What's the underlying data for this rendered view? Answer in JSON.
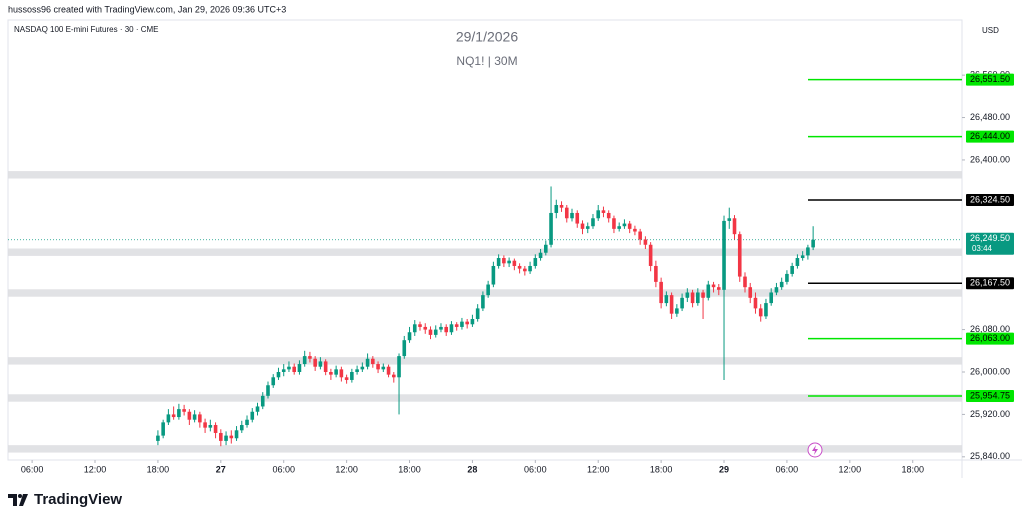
{
  "header": {
    "credit": "hussoss96 created with TradingView.com, Jan 29, 2026 09:36 UTC+3",
    "symbol": "NASDAQ 100 E-mini Futures · 30 · CME",
    "currency": "USD"
  },
  "footer": {
    "logo": "TradingView"
  },
  "chart_data": {
    "type": "candlestick",
    "title": "29/1/2026",
    "subtitle": "NQ1! | 30M",
    "up_color": "#089981",
    "down_color": "#f23645",
    "grid": false,
    "xlim": [
      3.7,
      94.7
    ],
    "ylim": [
      25834,
      26664
    ],
    "xticks": [
      {
        "value": 6,
        "label": "06:00"
      },
      {
        "value": 12,
        "label": "12:00"
      },
      {
        "value": 18,
        "label": "18:00"
      },
      {
        "value": 24,
        "label": "27"
      },
      {
        "value": 30,
        "label": "06:00"
      },
      {
        "value": 36,
        "label": "12:00"
      },
      {
        "value": 42,
        "label": "18:00"
      },
      {
        "value": 48,
        "label": "28"
      },
      {
        "value": 54,
        "label": "06:00"
      },
      {
        "value": 60,
        "label": "12:00"
      },
      {
        "value": 66,
        "label": "18:00"
      },
      {
        "value": 72,
        "label": "29"
      },
      {
        "value": 78,
        "label": "06:00"
      },
      {
        "value": 84,
        "label": "12:00"
      },
      {
        "value": 90,
        "label": "18:00"
      }
    ],
    "yticks": [
      {
        "value": 26560,
        "label": "26,560.00"
      },
      {
        "value": 26480,
        "label": "26,480.00"
      },
      {
        "value": 26400,
        "label": "26,400.00"
      },
      {
        "value": 26080,
        "label": "26,080.00"
      },
      {
        "value": 26000,
        "label": "26,000.00"
      },
      {
        "value": 25920,
        "label": "25,920.00"
      },
      {
        "value": 25840,
        "label": "25,840.00"
      }
    ],
    "zones": [
      [
        26365,
        26379
      ],
      [
        26219,
        26233
      ],
      [
        26142,
        26156
      ],
      [
        26014,
        26028
      ],
      [
        25944,
        25958
      ],
      [
        25848,
        25862
      ]
    ],
    "levels": [
      {
        "value": 26551.5,
        "label": "26,551.50",
        "color": "#00e600"
      },
      {
        "value": 26444,
        "label": "26,444.00",
        "color": "#00e600"
      },
      {
        "value": 26324.5,
        "label": "26,324.50",
        "color": "#000000"
      },
      {
        "value": 26167.5,
        "label": "26,167.50",
        "color": "#000000"
      },
      {
        "value": 26063,
        "label": "26,063.00",
        "color": "#00e600"
      },
      {
        "value": 25954.75,
        "label": "25,954.75",
        "color": "#00e600"
      }
    ],
    "last_price": {
      "value": 26249.5,
      "label": "26,249.50",
      "countdown": "03:44",
      "color": "#089981"
    },
    "candles": [
      [
        18,
        25870,
        25890,
        25862,
        25880
      ],
      [
        18.5,
        25880,
        25910,
        25875,
        25905
      ],
      [
        19,
        25905,
        25930,
        25900,
        25920
      ],
      [
        19.5,
        25920,
        25935,
        25910,
        25915
      ],
      [
        20,
        25915,
        25940,
        25910,
        25930
      ],
      [
        20.5,
        25930,
        25938,
        25918,
        25925
      ],
      [
        21,
        25925,
        25930,
        25900,
        25910
      ],
      [
        21.5,
        25910,
        25928,
        25905,
        25920
      ],
      [
        22,
        25920,
        25925,
        25895,
        25905
      ],
      [
        22.5,
        25905,
        25912,
        25885,
        25895
      ],
      [
        23,
        25895,
        25910,
        25888,
        25900
      ],
      [
        23.5,
        25900,
        25905,
        25875,
        25885
      ],
      [
        24,
        25885,
        25892,
        25860,
        25870
      ],
      [
        24.5,
        25870,
        25888,
        25862,
        25880
      ],
      [
        25,
        25880,
        25890,
        25865,
        25875
      ],
      [
        25.5,
        25875,
        25898,
        25870,
        25890
      ],
      [
        26,
        25890,
        25908,
        25885,
        25900
      ],
      [
        26.5,
        25900,
        25918,
        25895,
        25910
      ],
      [
        27,
        25910,
        25932,
        25905,
        25925
      ],
      [
        27.5,
        25925,
        25942,
        25918,
        25935
      ],
      [
        28,
        25935,
        25962,
        25930,
        25955
      ],
      [
        28.5,
        25955,
        25982,
        25950,
        25975
      ],
      [
        29,
        25975,
        25996,
        25970,
        25990
      ],
      [
        29.5,
        25990,
        26008,
        25985,
        26000
      ],
      [
        30,
        26000,
        26015,
        25992,
        26005
      ],
      [
        30.5,
        26005,
        26020,
        26000,
        26010
      ],
      [
        31,
        26010,
        26016,
        25995,
        26000
      ],
      [
        31.5,
        26000,
        26022,
        25995,
        26015
      ],
      [
        32,
        26015,
        26040,
        26010,
        26030
      ],
      [
        32.5,
        26030,
        26038,
        26018,
        26025
      ],
      [
        33,
        26025,
        26030,
        26002,
        26010
      ],
      [
        33.5,
        26010,
        26028,
        26005,
        26020
      ],
      [
        34,
        26020,
        26024,
        25994,
        26000
      ],
      [
        34.5,
        26000,
        26006,
        25985,
        25995
      ],
      [
        35,
        25995,
        26012,
        25990,
        26005
      ],
      [
        35.5,
        26005,
        26010,
        25982,
        25990
      ],
      [
        36,
        25990,
        25995,
        25978,
        25985
      ],
      [
        36.5,
        25985,
        26006,
        25980,
        26000
      ],
      [
        37,
        26000,
        26012,
        25995,
        26005
      ],
      [
        37.5,
        26005,
        26018,
        26000,
        26010
      ],
      [
        38,
        26010,
        26035,
        26005,
        26025
      ],
      [
        38.5,
        26025,
        26030,
        26008,
        26015
      ],
      [
        39,
        26015,
        26020,
        25998,
        26005
      ],
      [
        39.5,
        26005,
        26016,
        26000,
        26010
      ],
      [
        40,
        26010,
        26014,
        25990,
        25995
      ],
      [
        40.5,
        25995,
        26000,
        25980,
        25990
      ],
      [
        41,
        25990,
        26035,
        25920,
        26030
      ],
      [
        41.5,
        26030,
        26068,
        26025,
        26060
      ],
      [
        42,
        26060,
        26085,
        26055,
        26075
      ],
      [
        42.5,
        26075,
        26098,
        26068,
        26090
      ],
      [
        43,
        26090,
        26095,
        26078,
        26085
      ],
      [
        43.5,
        26085,
        26092,
        26072,
        26080
      ],
      [
        44,
        26080,
        26086,
        26062,
        26070
      ],
      [
        44.5,
        26070,
        26088,
        26065,
        26080
      ],
      [
        45,
        26080,
        26092,
        26075,
        26085
      ],
      [
        45.5,
        26085,
        26090,
        26068,
        26075
      ],
      [
        46,
        26075,
        26096,
        26070,
        26090
      ],
      [
        46.5,
        26090,
        26094,
        26078,
        26085
      ],
      [
        47,
        26085,
        26102,
        26080,
        26095
      ],
      [
        47.5,
        26095,
        26100,
        26082,
        26090
      ],
      [
        48,
        26090,
        26108,
        26085,
        26100
      ],
      [
        48.5,
        26100,
        26128,
        26095,
        26120
      ],
      [
        49,
        26120,
        26152,
        26115,
        26145
      ],
      [
        49.5,
        26145,
        26172,
        26140,
        26165
      ],
      [
        50,
        26165,
        26208,
        26160,
        26200
      ],
      [
        50.5,
        26200,
        26222,
        26195,
        26215
      ],
      [
        51,
        26215,
        26220,
        26198,
        26205
      ],
      [
        51.5,
        26205,
        26216,
        26198,
        26210
      ],
      [
        52,
        26210,
        26214,
        26192,
        26200
      ],
      [
        52.5,
        26200,
        26205,
        26186,
        26195
      ],
      [
        53,
        26195,
        26200,
        26182,
        26190
      ],
      [
        53.5,
        26190,
        26208,
        26185,
        26200
      ],
      [
        54,
        26200,
        26222,
        26195,
        26215
      ],
      [
        54.5,
        26215,
        26232,
        26210,
        26225
      ],
      [
        55,
        26225,
        26248,
        26220,
        26240
      ],
      [
        55.5,
        26240,
        26350,
        26235,
        26300
      ],
      [
        56,
        26300,
        26325,
        26290,
        26315
      ],
      [
        56.5,
        26315,
        26322,
        26302,
        26310
      ],
      [
        57,
        26310,
        26315,
        26282,
        26290
      ],
      [
        57.5,
        26290,
        26308,
        26284,
        26300
      ],
      [
        58,
        26300,
        26305,
        26272,
        26280
      ],
      [
        58.5,
        26280,
        26286,
        26260,
        26270
      ],
      [
        59,
        26270,
        26282,
        26262,
        26275
      ],
      [
        59.5,
        26275,
        26298,
        26270,
        26290
      ],
      [
        60,
        26290,
        26315,
        26285,
        26305
      ],
      [
        60.5,
        26305,
        26312,
        26292,
        26300
      ],
      [
        61,
        26300,
        26305,
        26282,
        26290
      ],
      [
        61.5,
        26290,
        26295,
        26262,
        26270
      ],
      [
        62,
        26270,
        26282,
        26265,
        26275
      ],
      [
        62.5,
        26275,
        26288,
        26270,
        26280
      ],
      [
        63,
        26280,
        26285,
        26262,
        26270
      ],
      [
        63.5,
        26270,
        26276,
        26258,
        26265
      ],
      [
        64,
        26265,
        26270,
        26240,
        26250
      ],
      [
        64.5,
        26250,
        26256,
        26232,
        26240
      ],
      [
        65,
        26240,
        26245,
        26190,
        26200
      ],
      [
        65.5,
        26200,
        26210,
        26160,
        26170
      ],
      [
        66,
        26170,
        26178,
        26120,
        26130
      ],
      [
        66.5,
        26130,
        26152,
        26124,
        26145
      ],
      [
        67,
        26145,
        26150,
        26100,
        26110
      ],
      [
        67.5,
        26110,
        26128,
        26104,
        26120
      ],
      [
        68,
        26120,
        26148,
        26115,
        26140
      ],
      [
        68.5,
        26140,
        26158,
        26132,
        26150
      ],
      [
        69,
        26150,
        26155,
        26122,
        26130
      ],
      [
        69.5,
        26130,
        26158,
        26125,
        26150
      ],
      [
        70,
        26150,
        26155,
        26100,
        26140
      ],
      [
        70.5,
        26140,
        26172,
        26135,
        26165
      ],
      [
        71,
        26165,
        26170,
        26150,
        26160
      ],
      [
        71.5,
        26160,
        26166,
        26145,
        26155
      ],
      [
        72,
        26155,
        26295,
        25985,
        26285
      ],
      [
        72.5,
        26285,
        26310,
        26270,
        26290
      ],
      [
        73,
        26290,
        26296,
        26250,
        26260
      ],
      [
        73.5,
        26260,
        26265,
        26170,
        26180
      ],
      [
        74,
        26180,
        26188,
        26150,
        26160
      ],
      [
        74.5,
        26160,
        26168,
        26130,
        26140
      ],
      [
        75,
        26140,
        26150,
        26110,
        26120
      ],
      [
        75.5,
        26120,
        26128,
        26095,
        26105
      ],
      [
        76,
        26105,
        26138,
        26100,
        26130
      ],
      [
        76.5,
        26130,
        26158,
        26125,
        26150
      ],
      [
        77,
        26150,
        26168,
        26145,
        26160
      ],
      [
        77.5,
        26160,
        26178,
        26155,
        26170
      ],
      [
        78,
        26170,
        26192,
        26165,
        26185
      ],
      [
        78.5,
        26185,
        26206,
        26180,
        26200
      ],
      [
        79,
        26200,
        26222,
        26195,
        26215
      ],
      [
        79.5,
        26215,
        26228,
        26210,
        26220
      ],
      [
        80,
        26220,
        26240,
        26212,
        26235
      ],
      [
        80.5,
        26235,
        26275,
        26230,
        26249.5
      ]
    ]
  }
}
